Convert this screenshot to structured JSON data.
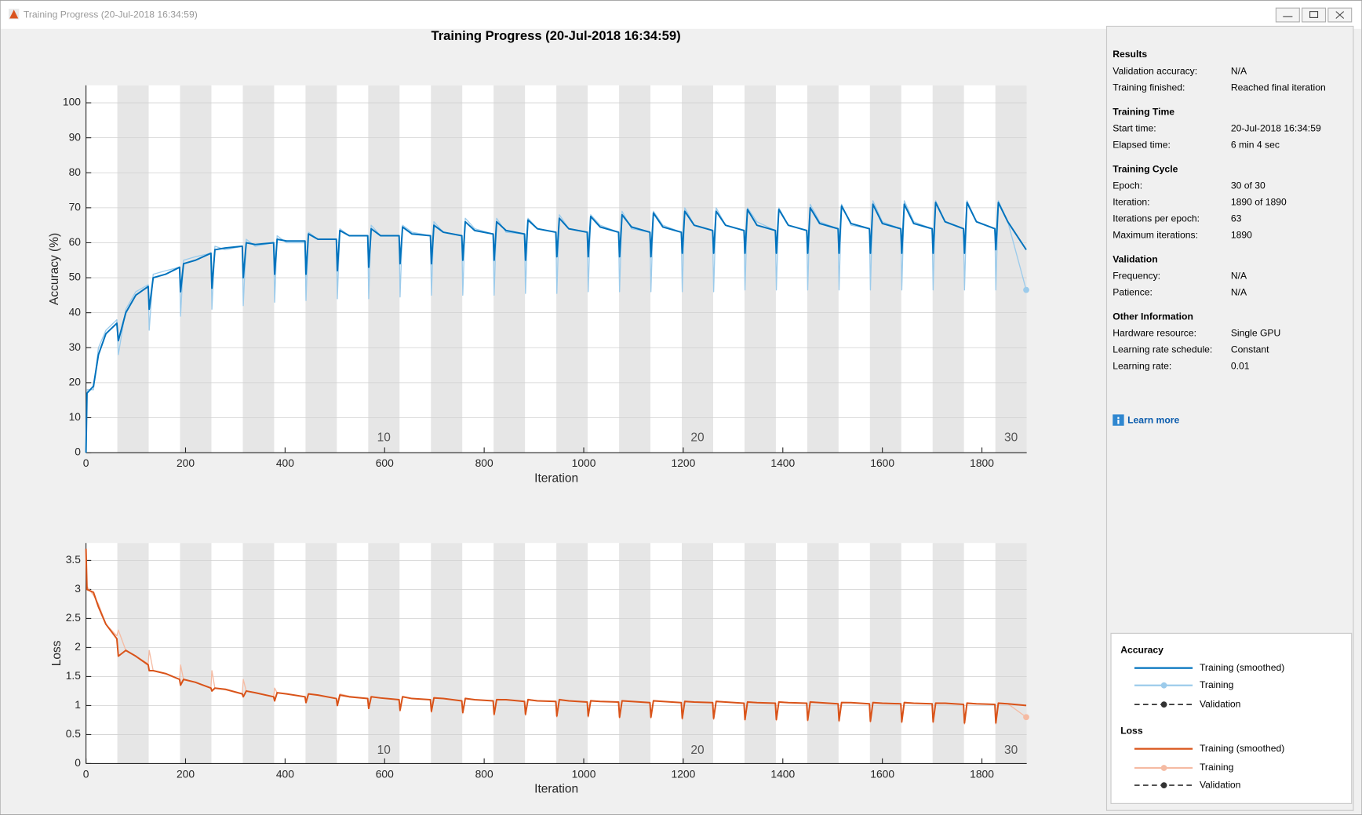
{
  "window": {
    "title": "Training Progress (20-Jul-2018 16:34:59)"
  },
  "title": "Training Progress (20-Jul-2018 16:34:59)",
  "chart_data": [
    {
      "type": "line",
      "ylabel": "Accuracy (%)",
      "xlabel": "Iteration",
      "legend_title": "Accuracy",
      "validation_label": "Validation",
      "x": [
        0,
        2,
        15,
        25,
        40,
        62,
        65,
        80,
        100,
        125,
        127,
        135,
        160,
        188,
        190,
        196,
        220,
        251,
        253,
        259,
        280,
        314,
        316,
        322,
        340,
        377,
        379,
        384,
        403,
        440,
        442,
        447,
        466,
        503,
        505,
        510,
        529,
        566,
        568,
        573,
        592,
        629,
        631,
        636,
        655,
        692,
        694,
        699,
        718,
        755,
        757,
        762,
        781,
        818,
        820,
        825,
        844,
        881,
        883,
        888,
        907,
        944,
        946,
        951,
        970,
        1007,
        1009,
        1014,
        1033,
        1070,
        1072,
        1077,
        1096,
        1133,
        1135,
        1140,
        1159,
        1196,
        1198,
        1203,
        1222,
        1259,
        1261,
        1266,
        1285,
        1322,
        1324,
        1329,
        1348,
        1385,
        1387,
        1392,
        1411,
        1448,
        1450,
        1455,
        1474,
        1511,
        1513,
        1518,
        1537,
        1574,
        1576,
        1581,
        1600,
        1637,
        1639,
        1644,
        1663,
        1700,
        1702,
        1707,
        1726,
        1763,
        1765,
        1770,
        1789,
        1826,
        1828,
        1833,
        1852,
        1889
      ],
      "series": [
        {
          "name": "Training",
          "color": "#9ccbeb",
          "values": [
            0,
            18,
            18,
            30,
            35,
            38,
            28,
            41,
            46,
            48,
            35,
            51,
            52,
            53,
            39,
            55,
            56,
            57,
            41,
            59,
            58,
            59,
            42,
            61,
            59,
            60,
            43,
            62,
            60,
            60,
            43.5,
            63,
            61,
            61,
            44,
            64,
            62,
            62,
            44,
            65,
            62,
            62,
            44.5,
            65,
            63,
            62,
            45,
            66,
            63,
            62,
            45,
            67,
            64,
            62.5,
            45,
            67,
            63,
            62.5,
            45.5,
            67,
            64,
            63,
            45.5,
            68,
            64,
            63,
            46,
            68,
            65,
            63,
            46,
            69,
            64,
            63,
            46,
            69,
            65,
            63,
            46,
            70,
            65,
            63.5,
            46,
            70,
            65,
            63.5,
            46.5,
            70,
            66,
            63.5,
            46.5,
            70,
            65,
            63.5,
            46.5,
            71,
            66,
            64,
            46.5,
            71,
            65,
            64,
            46.5,
            72,
            66,
            64,
            46.5,
            72,
            66,
            64,
            46.5,
            72,
            66,
            64,
            46.5,
            72,
            66,
            64,
            46.5,
            72,
            66,
            46.5
          ]
        },
        {
          "name": "Training (smoothed)",
          "color": "#0072bd",
          "values": [
            0,
            17,
            19,
            28,
            34,
            37,
            32,
            40,
            45,
            47.5,
            41,
            50,
            51,
            53,
            46,
            54,
            55,
            57,
            47,
            58,
            58.5,
            59,
            50,
            60,
            59.5,
            60,
            51,
            61,
            60.5,
            60.5,
            51,
            62.5,
            61,
            61,
            52,
            63.5,
            62,
            62,
            53,
            64,
            62,
            62,
            54,
            64.5,
            62.5,
            62,
            54,
            65,
            63,
            62,
            55,
            66,
            63.5,
            62.5,
            55,
            66,
            63.5,
            62.5,
            55,
            66.5,
            64,
            63,
            56,
            67,
            64,
            63,
            56,
            67.5,
            64.5,
            63,
            56,
            68,
            64.5,
            63,
            56,
            68.5,
            64.5,
            63,
            57,
            69,
            65,
            63.5,
            57,
            69,
            65,
            63.5,
            57,
            69.5,
            65,
            63.5,
            57,
            69.5,
            65,
            63.5,
            57,
            70,
            65.5,
            64,
            57,
            70.5,
            65.5,
            64,
            57,
            71,
            65.5,
            64,
            57,
            71,
            65.5,
            64,
            57,
            71.5,
            66,
            64,
            57,
            71.5,
            66,
            64,
            58,
            71.5,
            66,
            58
          ]
        }
      ],
      "xlim": [
        0,
        1890
      ],
      "ylim": [
        0,
        105
      ],
      "xticks": [
        0,
        200,
        400,
        600,
        800,
        1000,
        1200,
        1400,
        1600,
        1800
      ],
      "yticks": [
        0,
        10,
        20,
        30,
        40,
        50,
        60,
        70,
        80,
        90,
        100
      ],
      "grid": true,
      "epoch_length": 63,
      "epoch_labels": [
        10,
        20,
        30
      ]
    },
    {
      "type": "line",
      "ylabel": "Loss",
      "xlabel": "Iteration",
      "legend_title": "Loss",
      "validation_label": "Validation",
      "x": [
        0,
        2,
        15,
        25,
        40,
        62,
        65,
        80,
        100,
        125,
        127,
        135,
        160,
        188,
        190,
        196,
        220,
        251,
        253,
        259,
        280,
        314,
        316,
        322,
        340,
        377,
        379,
        384,
        403,
        440,
        442,
        447,
        466,
        503,
        505,
        510,
        529,
        566,
        568,
        573,
        592,
        629,
        631,
        636,
        655,
        692,
        694,
        699,
        718,
        755,
        757,
        762,
        781,
        818,
        820,
        825,
        844,
        881,
        883,
        888,
        907,
        944,
        946,
        951,
        970,
        1007,
        1009,
        1014,
        1033,
        1070,
        1072,
        1077,
        1096,
        1133,
        1135,
        1140,
        1159,
        1196,
        1198,
        1203,
        1222,
        1259,
        1261,
        1266,
        1285,
        1322,
        1324,
        1329,
        1348,
        1385,
        1387,
        1392,
        1411,
        1448,
        1450,
        1455,
        1474,
        1511,
        1513,
        1518,
        1537,
        1574,
        1576,
        1581,
        1600,
        1637,
        1639,
        1644,
        1663,
        1700,
        1702,
        1707,
        1726,
        1763,
        1765,
        1770,
        1789,
        1826,
        1828,
        1833,
        1852,
        1889
      ],
      "series": [
        {
          "name": "Training",
          "color": "#f5bba3",
          "values": [
            3.6,
            3.05,
            2.9,
            2.75,
            2.4,
            2.2,
            2.3,
            1.95,
            1.85,
            1.72,
            1.95,
            1.6,
            1.55,
            1.45,
            1.7,
            1.45,
            1.4,
            1.3,
            1.6,
            1.3,
            1.27,
            1.2,
            1.45,
            1.25,
            1.22,
            1.15,
            1.3,
            1.22,
            1.2,
            1.15,
            1.1,
            1.2,
            1.18,
            1.12,
            1.0,
            1.2,
            1.16,
            1.12,
            0.95,
            1.16,
            1.13,
            1.1,
            0.9,
            1.16,
            1.12,
            1.1,
            0.88,
            1.14,
            1.12,
            1.08,
            0.86,
            1.13,
            1.1,
            1.08,
            0.83,
            1.11,
            1.1,
            1.07,
            0.83,
            1.11,
            1.08,
            1.07,
            0.8,
            1.11,
            1.08,
            1.06,
            0.8,
            1.09,
            1.07,
            1.06,
            0.78,
            1.09,
            1.07,
            1.05,
            0.78,
            1.09,
            1.07,
            1.05,
            0.76,
            1.08,
            1.06,
            1.05,
            0.76,
            1.08,
            1.06,
            1.04,
            0.74,
            1.07,
            1.05,
            1.04,
            0.74,
            1.07,
            1.05,
            1.04,
            0.73,
            1.07,
            1.05,
            1.03,
            0.72,
            1.06,
            1.05,
            1.03,
            0.71,
            1.06,
            1.04,
            1.03,
            0.7,
            1.06,
            1.04,
            1.03,
            0.7,
            1.05,
            1.04,
            1.02,
            0.68,
            1.05,
            1.03,
            1.02,
            0.68,
            1.05,
            1.03,
            0.8
          ]
        },
        {
          "name": "Training (smoothed)",
          "color": "#d95319",
          "values": [
            3.7,
            3.0,
            2.95,
            2.7,
            2.4,
            2.15,
            1.85,
            1.95,
            1.85,
            1.7,
            1.6,
            1.6,
            1.55,
            1.45,
            1.35,
            1.45,
            1.4,
            1.3,
            1.25,
            1.3,
            1.28,
            1.2,
            1.15,
            1.25,
            1.22,
            1.15,
            1.08,
            1.22,
            1.2,
            1.15,
            1.05,
            1.2,
            1.18,
            1.12,
            1.0,
            1.18,
            1.15,
            1.12,
            0.95,
            1.15,
            1.13,
            1.1,
            0.92,
            1.15,
            1.12,
            1.1,
            0.9,
            1.13,
            1.12,
            1.08,
            0.88,
            1.12,
            1.1,
            1.08,
            0.85,
            1.1,
            1.1,
            1.07,
            0.85,
            1.1,
            1.08,
            1.07,
            0.82,
            1.1,
            1.08,
            1.06,
            0.82,
            1.08,
            1.07,
            1.06,
            0.8,
            1.08,
            1.07,
            1.05,
            0.8,
            1.08,
            1.07,
            1.05,
            0.78,
            1.07,
            1.06,
            1.05,
            0.78,
            1.07,
            1.06,
            1.04,
            0.76,
            1.06,
            1.05,
            1.04,
            0.76,
            1.06,
            1.05,
            1.04,
            0.75,
            1.06,
            1.05,
            1.03,
            0.74,
            1.05,
            1.05,
            1.03,
            0.73,
            1.05,
            1.04,
            1.03,
            0.72,
            1.05,
            1.04,
            1.03,
            0.72,
            1.04,
            1.04,
            1.02,
            0.7,
            1.04,
            1.03,
            1.02,
            0.7,
            1.04,
            1.03,
            1.0
          ]
        }
      ],
      "xlim": [
        0,
        1890
      ],
      "ylim": [
        0,
        3.8
      ],
      "xticks": [
        0,
        200,
        400,
        600,
        800,
        1000,
        1200,
        1400,
        1600,
        1800
      ],
      "yticks": [
        0,
        0.5,
        1,
        1.5,
        2,
        2.5,
        3,
        3.5
      ],
      "grid": true,
      "epoch_length": 63,
      "epoch_labels": [
        10,
        20,
        30
      ]
    }
  ],
  "info": {
    "sections": [
      {
        "heading": "Results",
        "rows": [
          [
            "Validation accuracy:",
            "N/A"
          ],
          [
            "Training finished:",
            "Reached final iteration"
          ]
        ]
      },
      {
        "heading": "Training Time",
        "rows": [
          [
            "Start time:",
            "20-Jul-2018 16:34:59"
          ],
          [
            "Elapsed time:",
            "6 min 4 sec"
          ]
        ]
      },
      {
        "heading": "Training Cycle",
        "rows": [
          [
            "Epoch:",
            "30 of 30"
          ],
          [
            "Iteration:",
            "1890 of 1890"
          ],
          [
            "Iterations per epoch:",
            "63"
          ],
          [
            "Maximum iterations:",
            "1890"
          ]
        ]
      },
      {
        "heading": "Validation",
        "rows": [
          [
            "Frequency:",
            "N/A"
          ],
          [
            "Patience:",
            "N/A"
          ]
        ]
      },
      {
        "heading": "Other Information",
        "rows": [
          [
            "Hardware resource:",
            "Single GPU"
          ],
          [
            "Learning rate schedule:",
            "Constant"
          ],
          [
            "Learning rate:",
            "0.01"
          ]
        ]
      }
    ],
    "link": "Learn more"
  }
}
